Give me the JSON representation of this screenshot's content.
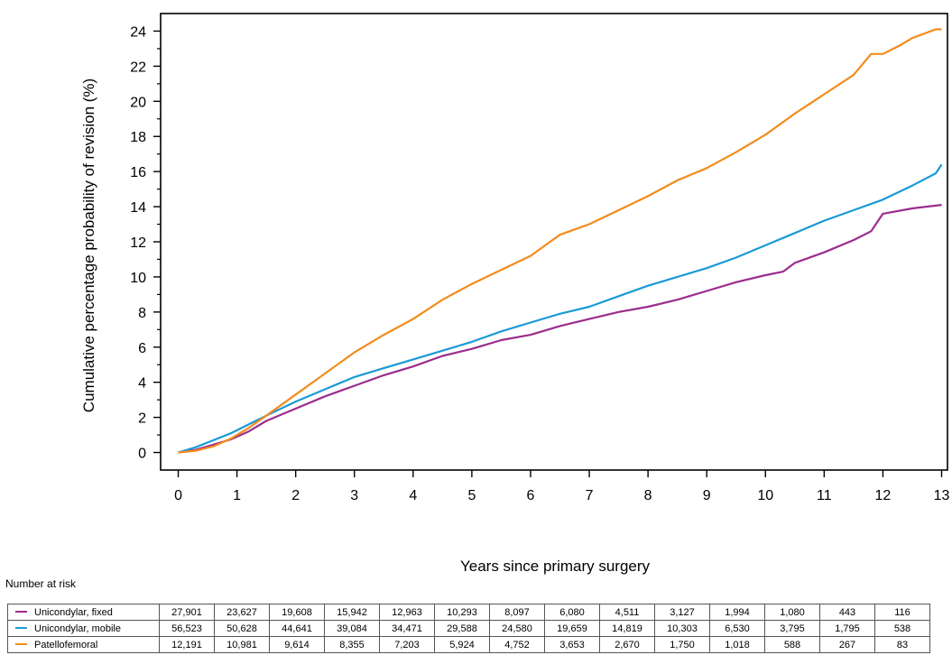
{
  "chart_data": {
    "type": "line",
    "title": "",
    "xlabel": "Years since primary surgery",
    "ylabel": "Cumulative percentage probability of revision (%)",
    "xlim": [
      -0.3,
      13.1
    ],
    "ylim": [
      -1,
      25
    ],
    "xticks": [
      0,
      1,
      2,
      3,
      4,
      5,
      6,
      7,
      8,
      9,
      10,
      11,
      12,
      13
    ],
    "yticks": [
      0,
      2,
      4,
      6,
      8,
      10,
      12,
      14,
      16,
      18,
      20,
      22,
      24
    ],
    "grid": false,
    "series": [
      {
        "name": "Unicondylar, fixed",
        "color": "#9b2d8e",
        "x": [
          0,
          0.3,
          0.6,
          0.9,
          1.2,
          1.5,
          2,
          2.5,
          3,
          3.5,
          4,
          4.5,
          5,
          5.5,
          6,
          6.5,
          7,
          7.5,
          8,
          8.5,
          9,
          9.5,
          10,
          10.3,
          10.5,
          11,
          11.5,
          11.8,
          12,
          12.5,
          13
        ],
        "y": [
          0,
          0.15,
          0.45,
          0.75,
          1.2,
          1.8,
          2.5,
          3.2,
          3.8,
          4.4,
          4.9,
          5.5,
          5.9,
          6.4,
          6.7,
          7.2,
          7.6,
          8.0,
          8.3,
          8.7,
          9.2,
          9.7,
          10.1,
          10.3,
          10.8,
          11.4,
          12.1,
          12.6,
          13.6,
          13.9,
          14.1
        ]
      },
      {
        "name": "Unicondylar, mobile",
        "color": "#1a9ad6",
        "x": [
          0,
          0.3,
          0.6,
          0.9,
          1.2,
          1.5,
          2,
          2.5,
          3,
          3.5,
          4,
          4.5,
          5,
          5.5,
          6,
          6.5,
          7,
          7.5,
          8,
          8.5,
          9,
          9.5,
          10,
          10.5,
          11,
          11.5,
          12,
          12.5,
          12.9,
          13
        ],
        "y": [
          0,
          0.3,
          0.7,
          1.1,
          1.6,
          2.1,
          2.9,
          3.6,
          4.3,
          4.8,
          5.3,
          5.8,
          6.3,
          6.9,
          7.4,
          7.9,
          8.3,
          8.9,
          9.5,
          10.0,
          10.5,
          11.1,
          11.8,
          12.5,
          13.2,
          13.8,
          14.4,
          15.2,
          15.9,
          16.4
        ]
      },
      {
        "name": "Patellofemoral",
        "color": "#f28c1c",
        "x": [
          0,
          0.3,
          0.6,
          0.9,
          1.2,
          1.5,
          2,
          2.5,
          3,
          3.5,
          4,
          4.5,
          5,
          5.5,
          6,
          6.5,
          7,
          7.5,
          8,
          8.5,
          9,
          9.5,
          10,
          10.5,
          11,
          11.5,
          11.8,
          12,
          12.3,
          12.5,
          12.9,
          13
        ],
        "y": [
          0,
          0.1,
          0.35,
          0.8,
          1.4,
          2.1,
          3.3,
          4.5,
          5.7,
          6.7,
          7.6,
          8.7,
          9.6,
          10.4,
          11.2,
          12.4,
          13.0,
          13.8,
          14.6,
          15.5,
          16.2,
          17.1,
          18.1,
          19.3,
          20.4,
          21.5,
          22.7,
          22.7,
          23.2,
          23.6,
          24.1,
          24.1
        ]
      }
    ]
  },
  "risk_table": {
    "title": "Number at risk",
    "rows": [
      {
        "name": "Unicondylar, fixed",
        "color": "#9b2d8e",
        "values": [
          "27,901",
          "23,627",
          "19,608",
          "15,942",
          "12,963",
          "10,293",
          "8,097",
          "6,080",
          "4,511",
          "3,127",
          "1,994",
          "1,080",
          "443",
          "116"
        ]
      },
      {
        "name": "Unicondylar, mobile",
        "color": "#1a9ad6",
        "values": [
          "56,523",
          "50,628",
          "44,641",
          "39,084",
          "34,471",
          "29,588",
          "24,580",
          "19,659",
          "14,819",
          "10,303",
          "6,530",
          "3,795",
          "1,795",
          "538"
        ]
      },
      {
        "name": "Patellofemoral",
        "color": "#f28c1c",
        "values": [
          "12,191",
          "10,981",
          "9,614",
          "8,355",
          "7,203",
          "5,924",
          "4,752",
          "3,653",
          "2,670",
          "1,750",
          "1,018",
          "588",
          "267",
          "83"
        ]
      }
    ]
  }
}
